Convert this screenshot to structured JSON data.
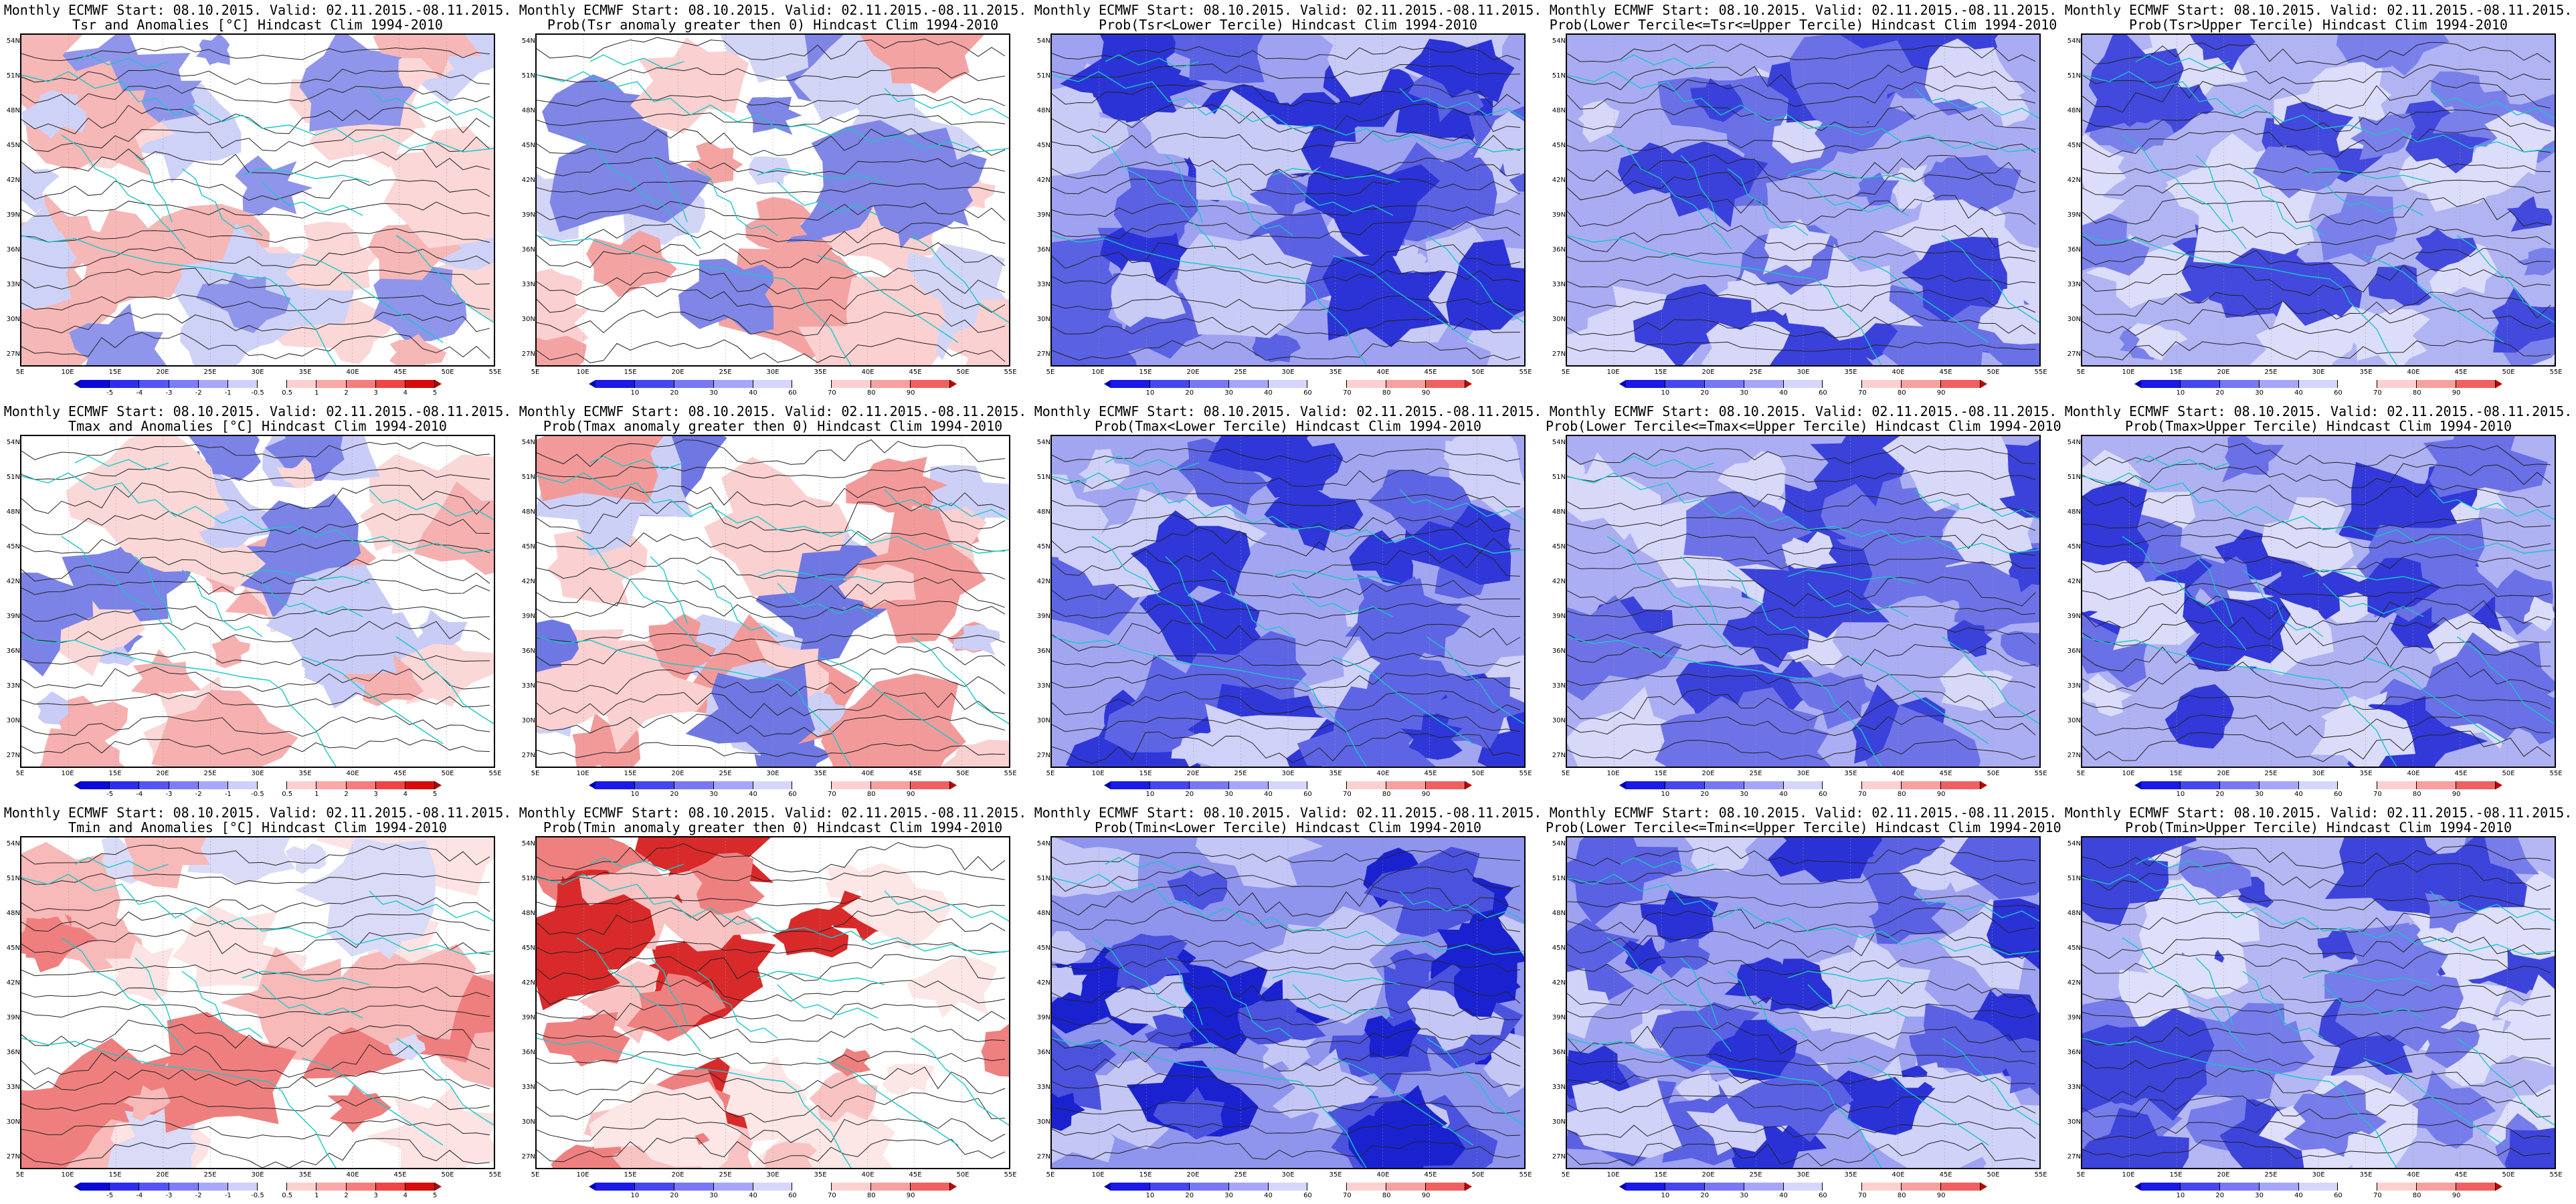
{
  "page": {
    "rows": 3,
    "cols": 5
  },
  "map_axes": {
    "lat_labels": [
      "54N",
      "51N",
      "48N",
      "45N",
      "42N",
      "39N",
      "36N",
      "33N",
      "30N",
      "27N"
    ],
    "lon_labels": [
      "5E",
      "10E",
      "15E",
      "20E",
      "25E",
      "30E",
      "35E",
      "40E",
      "45E",
      "50E",
      "55E"
    ]
  },
  "colorbars": {
    "anomaly": {
      "labels": [
        "-5",
        "-4",
        "-3",
        "-2",
        "-1",
        "-0.5",
        "0.5",
        "1",
        "2",
        "3",
        "4",
        "5"
      ],
      "colors": [
        "#0a0ad8",
        "#2d2df0",
        "#5555f5",
        "#7d7df8",
        "#a8a8fa",
        "#d0d0fc",
        "#ffffff",
        "#fcd0d0",
        "#faa8a8",
        "#f57d7d",
        "#f04545",
        "#d80a0a"
      ],
      "left_color": "#0000b0",
      "right_color": "#b00000"
    },
    "prob": {
      "labels": [
        "10",
        "20",
        "30",
        "40",
        "60",
        "70",
        "80",
        "90"
      ],
      "colors": [
        "#1a1ae6",
        "#4646ee",
        "#7878f4",
        "#a6a6f9",
        "#d6d6fc",
        "#ffffff",
        "#fcd0d0",
        "#f7a0a0",
        "#f06060"
      ],
      "left_color": "#0000b0",
      "right_color": "#c00000"
    }
  },
  "panels": [
    {
      "title1": "Monthly ECMWF Start: 08.10.2015. Valid: 02.11.2015.-08.11.2015.",
      "title2": "Tsr and Anomalies [°C] Hindcast Clim 1994-2010",
      "kind": "anom",
      "palette": {
        "c1": "#f6b7b7",
        "c2": "#fbd7d7",
        "c3": "#cfd2f7",
        "c4": "#8f95ea"
      },
      "cbar": "anomaly"
    },
    {
      "title1": "Monthly ECMWF Start: 08.10.2015. Valid: 02.11.2015.-08.11.2015.",
      "title2": "Prob(Tsr anomaly greater then 0) Hindcast Clim 1994-2010",
      "kind": "prob",
      "palette": {
        "c1": "#f4a3a3",
        "c2": "#fbd0d0",
        "c3": "#d3d5f7",
        "c4": "#7f86e6"
      },
      "cbar": "prob"
    },
    {
      "title1": "Monthly ECMWF Start: 08.10.2015. Valid: 02.11.2015.-08.11.2015.",
      "title2": "Prob(Tsr<Lower Tercile) Hindcast Clim 1994-2010",
      "kind": "blue",
      "palette": {
        "c1": "#2b33d6",
        "c2": "#5a61e3",
        "c3": "#9ea2f0",
        "c4": "#c9cbf7"
      },
      "cbar": "prob"
    },
    {
      "title1": "Monthly ECMWF Start: 08.10.2015. Valid: 02.11.2015.-08.11.2015.",
      "title2": "Prob(Lower Tercile<=Tsr<=Upper Tercile) Hindcast Clim 1994-2010",
      "kind": "blue",
      "palette": {
        "c1": "#3a41da",
        "c2": "#6a70e6",
        "c3": "#a9acf2",
        "c4": "#d6d7f9"
      },
      "cbar": "prob"
    },
    {
      "title1": "Monthly ECMWF Start: 08.10.2015. Valid: 02.11.2015.-08.11.2015.",
      "title2": "Prob(Tsr>Upper Tercile) Hindcast Clim 1994-2010",
      "kind": "blue",
      "palette": {
        "c1": "#4249dc",
        "c2": "#7a80ea",
        "c3": "#b1b4f3",
        "c4": "#dcddfa"
      },
      "cbar": "prob"
    },
    {
      "title1": "Monthly ECMWF Start: 08.10.2015. Valid: 02.11.2015.-08.11.2015.",
      "title2": "Tmax and Anomalies [°C] Hindcast Clim 1994-2010",
      "kind": "anom",
      "palette": {
        "c1": "#f6b0b0",
        "c2": "#fbd8d8",
        "c3": "#c8ccf6",
        "c4": "#7c83e6"
      },
      "cbar": "anomaly"
    },
    {
      "title1": "Monthly ECMWF Start: 08.10.2015. Valid: 02.11.2015.-08.11.2015.",
      "title2": "Prob(Tmax anomaly greater then 0) Hindcast Clim 1994-2010",
      "kind": "prob",
      "palette": {
        "c1": "#f29a9a",
        "c2": "#fbd0d0",
        "c3": "#cdd0f6",
        "c4": "#6f77e3"
      },
      "cbar": "prob"
    },
    {
      "title1": "Monthly ECMWF Start: 08.10.2015. Valid: 02.11.2015.-08.11.2015.",
      "title2": "Prob(Tmax<Lower Tercile) Hindcast Clim 1994-2010",
      "kind": "blue",
      "palette": {
        "c1": "#2f37d8",
        "c2": "#5e65e4",
        "c3": "#a2a6f1",
        "c4": "#cfd1f8"
      },
      "cbar": "prob"
    },
    {
      "title1": "Monthly ECMWF Start: 08.10.2015. Valid: 02.11.2015.-08.11.2015.",
      "title2": "Prob(Lower Tercile<=Tmax<=Upper Tercile) Hindcast Clim 1994-2010",
      "kind": "blue",
      "palette": {
        "c1": "#3b42da",
        "c2": "#6d73e7",
        "c3": "#abaef2",
        "c4": "#d8d9f9"
      },
      "cbar": "prob"
    },
    {
      "title1": "Monthly ECMWF Start: 08.10.2015. Valid: 02.11.2015.-08.11.2015.",
      "title2": "Prob(Tmax>Upper Tercile) Hindcast Clim 1994-2010",
      "kind": "blue",
      "palette": {
        "c1": "#3239d8",
        "c2": "#6a70e6",
        "c3": "#aeb1f2",
        "c4": "#dbdcfa"
      },
      "cbar": "prob"
    },
    {
      "title1": "Monthly ECMWF Start: 08.10.2015. Valid: 02.11.2015.-08.11.2015.",
      "title2": "Tmin and Anomalies [°C] Hindcast Clim 1994-2010",
      "kind": "anom",
      "palette": {
        "c1": "#ef7f7f",
        "c2": "#f8b9b9",
        "c3": "#fde3e3",
        "c4": "#d9dbf7"
      },
      "cbar": "anomaly"
    },
    {
      "title1": "Monthly ECMWF Start: 08.10.2015. Valid: 02.11.2015.-08.11.2015.",
      "title2": "Prob(Tmin anomaly greater then 0) Hindcast Clim 1994-2010",
      "kind": "prob",
      "palette": {
        "c1": "#d82a2a",
        "c2": "#ef8080",
        "c3": "#f9c3c3",
        "c4": "#fde6e6"
      },
      "cbar": "prob"
    },
    {
      "title1": "Monthly ECMWF Start: 08.10.2015. Valid: 02.11.2015.-08.11.2015.",
      "title2": "Prob(Tmin<Lower Tercile) Hindcast Clim 1994-2010",
      "kind": "blue",
      "palette": {
        "c1": "#1a22cf",
        "c2": "#4a52de",
        "c3": "#8f94ed",
        "c4": "#c4c6f6"
      },
      "cbar": "prob"
    },
    {
      "title1": "Monthly ECMWF Start: 08.10.2015. Valid: 02.11.2015.-08.11.2015.",
      "title2": "Prob(Lower Tercile<=Tmin<=Upper Tercile) Hindcast Clim 1994-2010",
      "kind": "blue",
      "palette": {
        "c1": "#2a32d6",
        "c2": "#5a61e3",
        "c3": "#9ea2f0",
        "c4": "#d0d2f8"
      },
      "cbar": "prob"
    },
    {
      "title1": "Monthly ECMWF Start: 08.10.2015. Valid: 02.11.2015.-08.11.2015.",
      "title2": "Prob(Tmin>Upper Tercile) Hindcast Clim 1994-2010",
      "kind": "blue",
      "palette": {
        "c1": "#3d44da",
        "c2": "#767ce9",
        "c3": "#b4b7f3",
        "c4": "#dedffa"
      },
      "cbar": "prob"
    }
  ],
  "colors": {
    "coast": "#16c8c8",
    "contour": "#222222",
    "frame": "#000000"
  }
}
